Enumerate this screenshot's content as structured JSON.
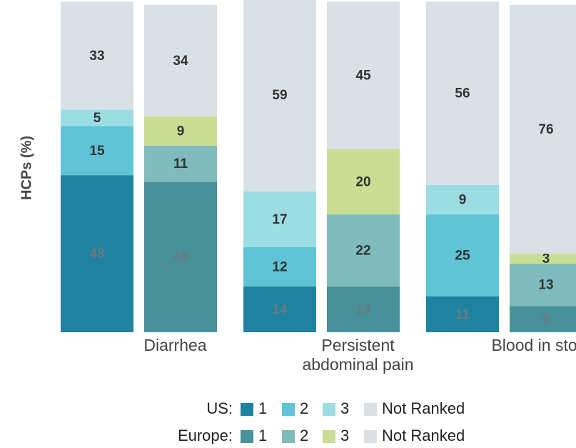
{
  "chart_data": {
    "type": "bar",
    "stacked": true,
    "y_label": "HCPs (%)",
    "categories": [
      "Diarrhea",
      "Persistent abdominal pain",
      "Blood in stool"
    ],
    "ylim": [
      0,
      100
    ],
    "groups": [
      {
        "name": "US:",
        "series": [
          {
            "name": "1",
            "color": "#1f82a0",
            "values": [
              48,
              14,
              11
            ]
          },
          {
            "name": "2",
            "color": "#5ec4d6",
            "values": [
              15,
              12,
              25
            ]
          },
          {
            "name": "3",
            "color": "#9bdde3",
            "values": [
              5,
              17,
              9
            ]
          },
          {
            "name": "Not Ranked",
            "color": "#d9e1e6",
            "values": [
              33,
              59,
              56
            ]
          }
        ]
      },
      {
        "name": "Europe:",
        "series": [
          {
            "name": "1",
            "color": "#47919a",
            "values": [
              46,
              14,
              8
            ]
          },
          {
            "name": "2",
            "color": "#7fbbbd",
            "values": [
              11,
              22,
              13
            ]
          },
          {
            "name": "3",
            "color": "#c9de94",
            "values": [
              9,
              20,
              3
            ]
          },
          {
            "name": "Not Ranked",
            "color": "#d9e1e6",
            "values": [
              34,
              45,
              76
            ]
          }
        ]
      }
    ]
  }
}
